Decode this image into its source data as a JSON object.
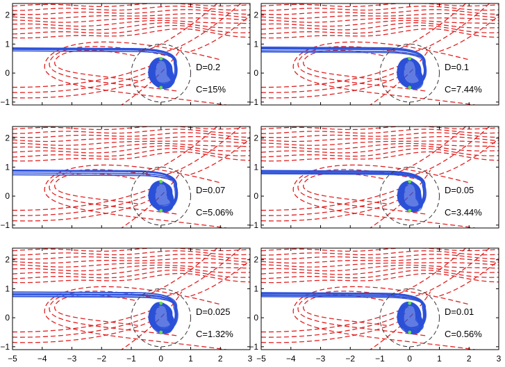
{
  "chart_data": {
    "type": "line",
    "layout": "3x2 grid of panels",
    "xlim": [
      -5,
      3
    ],
    "ylim": [
      -1.1,
      2.4
    ],
    "x_ticks": [
      -5,
      -4,
      -3,
      -2,
      -1,
      0,
      1,
      2,
      3
    ],
    "y_ticks": [
      -1,
      0,
      1,
      2
    ],
    "x_tick_labels": [
      "−5",
      "−4",
      "−3",
      "−2",
      "−1",
      "0",
      "1",
      "2",
      "3"
    ],
    "y_tick_labels": [
      "−1",
      "0",
      "1",
      "2"
    ],
    "grid": false,
    "legend": "none",
    "colors": {
      "trajectories": "#2b50d8",
      "streamlines": "#e02020",
      "circle": "#333333",
      "markers": "#66dd44"
    },
    "circle": {
      "center": [
        0,
        0
      ],
      "radius": 1
    },
    "markers": [
      [
        0,
        0.5
      ],
      [
        0,
        -0.5
      ]
    ],
    "panels": [
      {
        "D_label": "D=0.2",
        "C_label": "C=15%",
        "D": 0.2,
        "C_percent": 15
      },
      {
        "D_label": "D=0.1",
        "C_label": "C=7.44%",
        "D": 0.1,
        "C_percent": 7.44
      },
      {
        "D_label": "D=0.07",
        "C_label": "C=5.06%",
        "D": 0.07,
        "C_percent": 5.06
      },
      {
        "D_label": "D=0.05",
        "C_label": "C=3.44%",
        "D": 0.05,
        "C_percent": 3.44
      },
      {
        "D_label": "D=0.025",
        "C_label": "C=1.32%",
        "D": 0.025,
        "C_percent": 1.32
      },
      {
        "D_label": "D=0.01",
        "C_label": "C=0.56%",
        "D": 0.01,
        "C_percent": 0.56
      }
    ]
  }
}
